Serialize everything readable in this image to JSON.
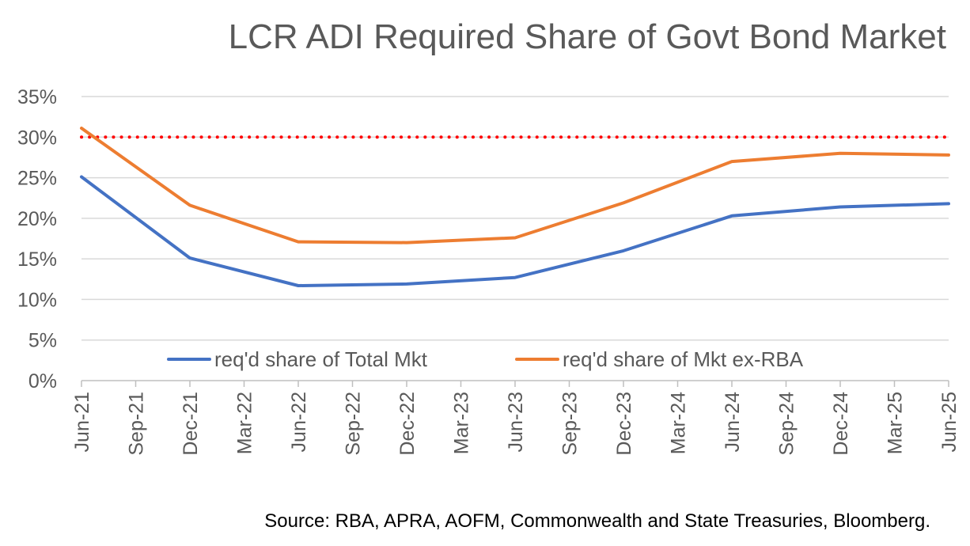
{
  "chart_data": {
    "type": "line",
    "title": "LCR ADI Required Share of Govt Bond Market",
    "source": "Source: RBA, APRA, AOFM, Commonwealth and State Treasuries, Bloomberg.",
    "categories": [
      "Jun-21",
      "Sep-21",
      "Dec-21",
      "Mar-22",
      "Jun-22",
      "Sep-22",
      "Dec-22",
      "Mar-23",
      "Jun-23",
      "Sep-23",
      "Dec-23",
      "Mar-24",
      "Jun-24",
      "Sep-24",
      "Dec-24",
      "Mar-25",
      "Jun-25"
    ],
    "ylim": [
      0,
      35
    ],
    "yticks": [
      0,
      5,
      10,
      15,
      20,
      25,
      30,
      35
    ],
    "ytick_labels": [
      "0%",
      "5%",
      "10%",
      "15%",
      "20%",
      "25%",
      "30%",
      "35%"
    ],
    "grid": true,
    "legend_position": "bottom",
    "series": [
      {
        "name": "req'd share of Total Mkt",
        "color": "#4472C4",
        "x": [
          "Jun-21",
          "Dec-21",
          "Jun-22",
          "Dec-22",
          "Jun-23",
          "Dec-23",
          "Jun-24",
          "Dec-24",
          "Jun-25"
        ],
        "values": [
          25.1,
          15.1,
          11.7,
          11.9,
          12.7,
          16.0,
          20.3,
          21.4,
          21.8
        ]
      },
      {
        "name": "req'd share of Mkt ex-RBA",
        "color": "#ED7D31",
        "x": [
          "Jun-21",
          "Dec-21",
          "Jun-22",
          "Dec-22",
          "Jun-23",
          "Dec-23",
          "Jun-24",
          "Dec-24",
          "Jun-25"
        ],
        "values": [
          31.1,
          21.6,
          17.1,
          17.0,
          17.6,
          21.9,
          27.0,
          28.0,
          27.8
        ]
      }
    ],
    "reference_line": {
      "value": 30,
      "color": "#FF0000",
      "style": "dotted"
    }
  }
}
